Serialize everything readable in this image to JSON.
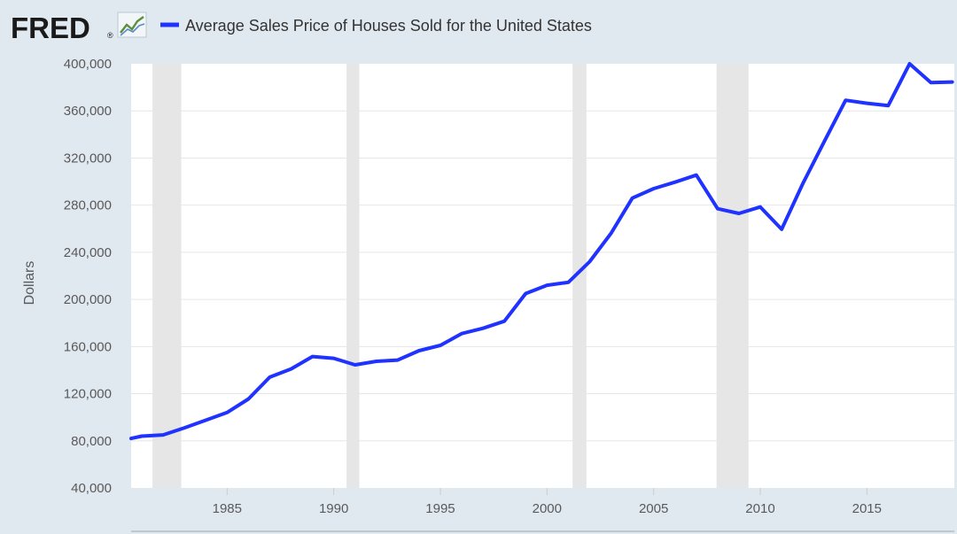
{
  "logo": {
    "text": "FRED",
    "registered": "®"
  },
  "colors": {
    "background": "#e1e9f0",
    "plot_background": "#ffffff",
    "series": "#1f32ff",
    "recession": "#e6e6e6",
    "grid": "#e6e6e6",
    "text": "#595959"
  },
  "chart_data": {
    "type": "line",
    "title": "",
    "xlabel": "",
    "ylabel": "Dollars",
    "legend": [
      "Average Sales Price of Houses Sold for the United States"
    ],
    "legend_position": "top-left",
    "grid": true,
    "xlim": [
      1980.5,
      2019.1
    ],
    "ylim": [
      40000,
      400000
    ],
    "yticks": [
      40000,
      80000,
      120000,
      160000,
      200000,
      240000,
      280000,
      320000,
      360000,
      400000
    ],
    "ytick_labels": [
      "40,000",
      "80,000",
      "120,000",
      "160,000",
      "200,000",
      "240,000",
      "280,000",
      "320,000",
      "360,000",
      "400,000"
    ],
    "xticks": [
      1985,
      1990,
      1995,
      2000,
      2005,
      2010,
      2015
    ],
    "xtick_labels": [
      "1985",
      "1990",
      "1995",
      "2000",
      "2005",
      "2010",
      "2015"
    ],
    "recessions": [
      [
        1981.5,
        1982.85
      ],
      [
        1990.6,
        1991.2
      ],
      [
        2001.2,
        2001.85
      ],
      [
        2007.95,
        2009.45
      ]
    ],
    "series": [
      {
        "name": "Average Sales Price of Houses Sold for the United States",
        "x": [
          1980.5,
          1981,
          1982,
          1983,
          1984,
          1985,
          1986,
          1987,
          1988,
          1989,
          1990,
          1991,
          1992,
          1993,
          1994,
          1995,
          1996,
          1997,
          1998,
          1999,
          2000,
          2001,
          2002,
          2003,
          2004,
          2005,
          2006,
          2007,
          2008,
          2009,
          2010,
          2011,
          2012,
          2013,
          2014,
          2015,
          2016,
          2017,
          2018,
          2019
        ],
        "values": [
          82000,
          84000,
          85000,
          91000,
          97500,
          104000,
          115500,
          134000,
          141000,
          151500,
          150000,
          144500,
          147500,
          148500,
          156500,
          161000,
          171000,
          175500,
          181500,
          205000,
          212000,
          214500,
          232000,
          256000,
          286000,
          294000,
          299500,
          305500,
          277000,
          273000,
          278500,
          259500,
          298500,
          334000,
          369000,
          366500,
          364500,
          400000,
          384000,
          384500
        ]
      }
    ]
  }
}
